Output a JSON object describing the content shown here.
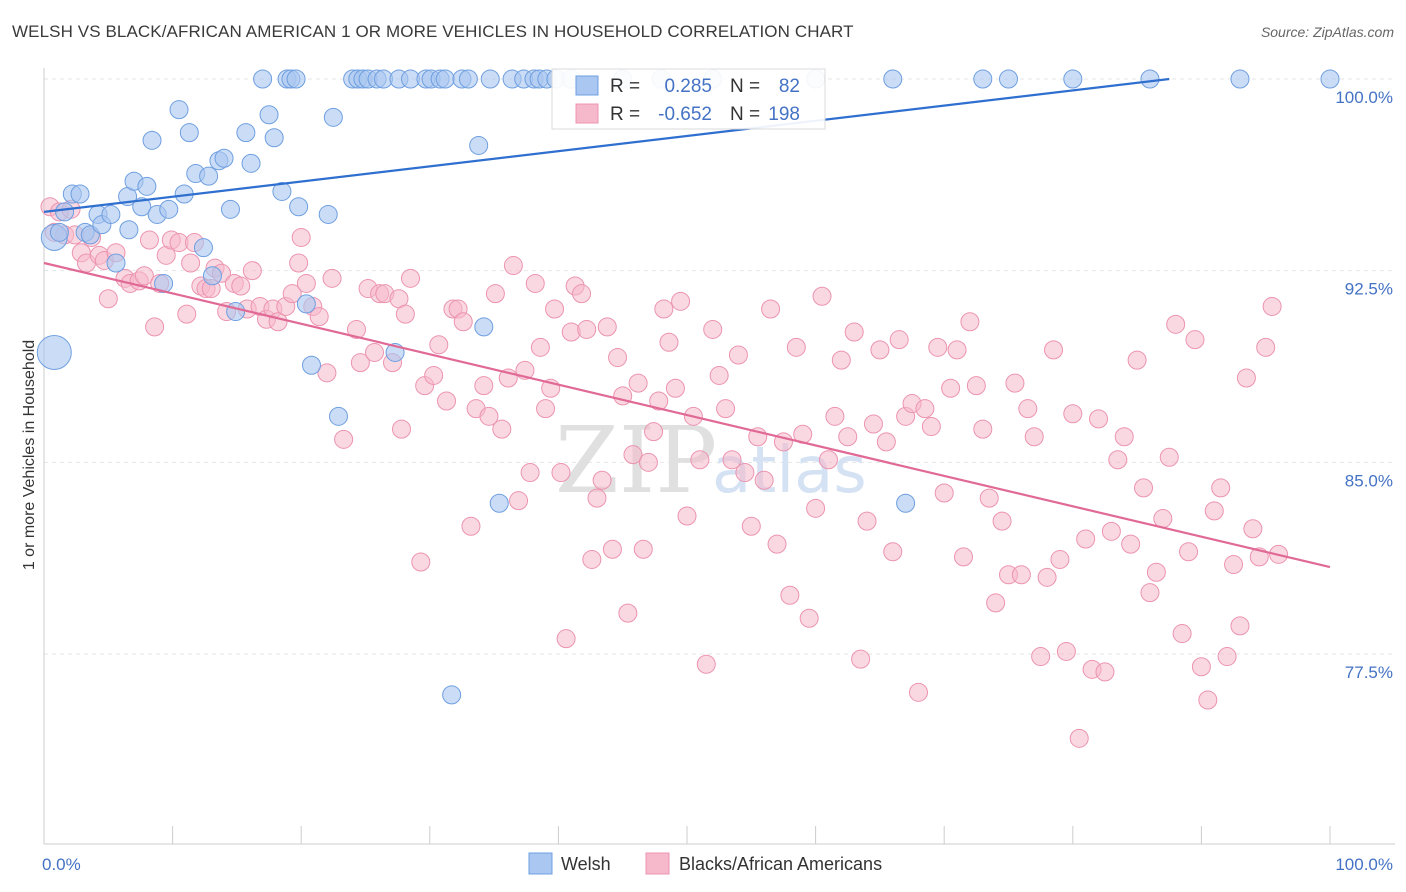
{
  "title": "WELSH VS BLACK/AFRICAN AMERICAN 1 OR MORE VEHICLES IN HOUSEHOLD CORRELATION CHART",
  "source": "Source: ZipAtlas.com",
  "watermark": {
    "zip": "ZIP",
    "atlas": "atlas"
  },
  "colors": {
    "welsh_fill": "#a9c7f0",
    "welsh_stroke": "#6f9fe0",
    "welsh_line": "#2f6fcf",
    "black_fill": "#f6b8cb",
    "black_stroke": "#ec94b0",
    "black_line": "#e06a95",
    "accent": "#4472c4"
  },
  "stats": {
    "r_label": "R =",
    "n_label": "N =",
    "welsh": {
      "r": "0.285",
      "n": "82"
    },
    "black": {
      "r": "-0.652",
      "n": "198"
    }
  },
  "chart_data": {
    "type": "scatter",
    "xlabel": "",
    "ylabel": "1 or more Vehicles in Household",
    "xlim": [
      0,
      100
    ],
    "ylim": [
      71,
      101
    ],
    "x_tick_labels": [
      "0.0%",
      "100.0%"
    ],
    "y_ticks": [
      77.5,
      85.0,
      92.5,
      100.0
    ],
    "y_tick_labels": [
      "77.5%",
      "85.0%",
      "92.5%",
      "100.0%"
    ],
    "grid": true,
    "legend_position": "bottom-center",
    "series": [
      {
        "name": "Welsh",
        "trend": {
          "x": [
            0,
            87.5
          ],
          "y": [
            94.8,
            100.0
          ]
        },
        "points": [
          [
            0.8,
            93.8
          ],
          [
            0.8,
            89.3
          ],
          [
            1.2,
            94.0
          ],
          [
            1.6,
            94.8
          ],
          [
            2.2,
            95.5
          ],
          [
            2.8,
            95.5
          ],
          [
            3.2,
            94.0
          ],
          [
            3.6,
            93.9
          ],
          [
            4.2,
            94.7
          ],
          [
            4.5,
            94.3
          ],
          [
            5.2,
            94.7
          ],
          [
            5.6,
            92.8
          ],
          [
            6.5,
            95.4
          ],
          [
            6.6,
            94.1
          ],
          [
            7.0,
            96.0
          ],
          [
            7.6,
            95.0
          ],
          [
            8.0,
            95.8
          ],
          [
            8.4,
            97.6
          ],
          [
            8.8,
            94.7
          ],
          [
            9.3,
            92.0
          ],
          [
            9.7,
            94.9
          ],
          [
            10.5,
            98.8
          ],
          [
            10.9,
            95.5
          ],
          [
            11.3,
            97.9
          ],
          [
            11.8,
            96.3
          ],
          [
            12.4,
            93.4
          ],
          [
            12.8,
            96.2
          ],
          [
            13.1,
            92.3
          ],
          [
            13.6,
            96.8
          ],
          [
            14.0,
            96.9
          ],
          [
            14.5,
            94.9
          ],
          [
            14.9,
            90.9
          ],
          [
            15.7,
            97.9
          ],
          [
            16.1,
            96.7
          ],
          [
            17.0,
            100.0
          ],
          [
            17.5,
            98.6
          ],
          [
            17.9,
            97.7
          ],
          [
            18.5,
            95.6
          ],
          [
            18.9,
            100.0
          ],
          [
            19.2,
            100.0
          ],
          [
            19.6,
            100.0
          ],
          [
            19.8,
            95.0
          ],
          [
            20.4,
            91.2
          ],
          [
            20.8,
            88.8
          ],
          [
            22.1,
            94.7
          ],
          [
            22.5,
            98.5
          ],
          [
            22.9,
            86.8
          ],
          [
            24.0,
            100.0
          ],
          [
            24.4,
            100.0
          ],
          [
            24.8,
            100.0
          ],
          [
            25.2,
            100.0
          ],
          [
            25.9,
            100.0
          ],
          [
            26.4,
            100.0
          ],
          [
            27.6,
            100.0
          ],
          [
            27.3,
            89.3
          ],
          [
            28.5,
            100.0
          ],
          [
            29.7,
            100.0
          ],
          [
            30.1,
            100.0
          ],
          [
            30.8,
            100.0
          ],
          [
            31.2,
            100.0
          ],
          [
            31.7,
            75.9
          ],
          [
            32.5,
            100.0
          ],
          [
            33.0,
            100.0
          ],
          [
            33.8,
            97.4
          ],
          [
            34.2,
            90.3
          ],
          [
            34.7,
            100.0
          ],
          [
            35.4,
            83.4
          ],
          [
            36.4,
            100.0
          ],
          [
            37.3,
            100.0
          ],
          [
            38.1,
            100.0
          ],
          [
            38.5,
            100.0
          ],
          [
            39.1,
            100.0
          ],
          [
            39.8,
            100.0
          ],
          [
            41.0,
            100.0
          ],
          [
            45.0,
            100.0
          ],
          [
            48.0,
            100.0
          ],
          [
            52.0,
            100.0
          ],
          [
            60.0,
            100.0
          ],
          [
            66.0,
            100.0
          ],
          [
            67.0,
            83.4
          ],
          [
            73.0,
            100.0
          ],
          [
            75.0,
            100.0
          ],
          [
            80.0,
            100.0
          ],
          [
            86.0,
            100.0
          ],
          [
            93.0,
            100.0
          ],
          [
            100.0,
            100.0
          ]
        ]
      },
      {
        "name": "Blacks/African Americans",
        "trend": {
          "x": [
            0,
            100
          ],
          "y": [
            92.8,
            80.9
          ]
        },
        "points": [
          [
            0.4,
            95.0
          ],
          [
            0.8,
            94.0
          ],
          [
            1.2,
            94.8
          ],
          [
            1.6,
            93.9
          ],
          [
            2.1,
            94.9
          ],
          [
            2.4,
            93.9
          ],
          [
            2.9,
            93.2
          ],
          [
            3.3,
            92.8
          ],
          [
            3.7,
            93.8
          ],
          [
            4.3,
            93.1
          ],
          [
            4.7,
            92.9
          ],
          [
            5.0,
            91.4
          ],
          [
            5.6,
            93.2
          ],
          [
            6.3,
            92.2
          ],
          [
            6.7,
            92.0
          ],
          [
            7.4,
            92.1
          ],
          [
            7.8,
            92.3
          ],
          [
            8.2,
            93.7
          ],
          [
            8.6,
            90.3
          ],
          [
            9.0,
            92.0
          ],
          [
            9.5,
            93.1
          ],
          [
            9.9,
            93.7
          ],
          [
            10.5,
            93.6
          ],
          [
            11.1,
            90.8
          ],
          [
            11.4,
            92.8
          ],
          [
            11.7,
            93.6
          ],
          [
            12.2,
            91.9
          ],
          [
            12.6,
            91.8
          ],
          [
            13.0,
            91.8
          ],
          [
            13.3,
            92.6
          ],
          [
            13.8,
            92.4
          ],
          [
            14.2,
            90.9
          ],
          [
            14.8,
            92.0
          ],
          [
            15.3,
            91.9
          ],
          [
            15.8,
            91.0
          ],
          [
            16.2,
            92.5
          ],
          [
            16.8,
            91.1
          ],
          [
            17.3,
            90.6
          ],
          [
            17.8,
            91.0
          ],
          [
            18.2,
            90.5
          ],
          [
            18.8,
            91.1
          ],
          [
            19.3,
            91.6
          ],
          [
            19.8,
            92.8
          ],
          [
            20.0,
            93.8
          ],
          [
            20.4,
            92.0
          ],
          [
            20.9,
            91.1
          ],
          [
            21.4,
            90.7
          ],
          [
            22.0,
            88.5
          ],
          [
            22.4,
            92.2
          ],
          [
            23.3,
            85.9
          ],
          [
            24.3,
            90.2
          ],
          [
            24.6,
            88.9
          ],
          [
            25.2,
            91.8
          ],
          [
            25.7,
            89.3
          ],
          [
            26.1,
            91.6
          ],
          [
            26.5,
            91.6
          ],
          [
            27.1,
            88.9
          ],
          [
            27.6,
            91.4
          ],
          [
            27.8,
            86.3
          ],
          [
            28.1,
            90.8
          ],
          [
            28.5,
            92.2
          ],
          [
            29.3,
            81.1
          ],
          [
            29.6,
            88.0
          ],
          [
            30.3,
            88.4
          ],
          [
            30.7,
            89.6
          ],
          [
            31.3,
            87.4
          ],
          [
            31.8,
            91.0
          ],
          [
            32.2,
            91.0
          ],
          [
            32.6,
            90.5
          ],
          [
            33.2,
            82.5
          ],
          [
            33.6,
            87.1
          ],
          [
            34.2,
            88.0
          ],
          [
            34.6,
            86.8
          ],
          [
            35.1,
            91.6
          ],
          [
            35.6,
            86.3
          ],
          [
            36.1,
            88.3
          ],
          [
            36.5,
            92.7
          ],
          [
            36.9,
            83.5
          ],
          [
            37.4,
            88.6
          ],
          [
            37.8,
            84.6
          ],
          [
            38.2,
            92.0
          ],
          [
            38.6,
            89.5
          ],
          [
            39.0,
            87.1
          ],
          [
            39.4,
            87.9
          ],
          [
            39.7,
            91.0
          ],
          [
            40.2,
            84.6
          ],
          [
            40.6,
            78.1
          ],
          [
            41.0,
            90.1
          ],
          [
            41.3,
            91.9
          ],
          [
            41.8,
            91.6
          ],
          [
            42.2,
            90.2
          ],
          [
            42.6,
            81.2
          ],
          [
            43.0,
            83.6
          ],
          [
            43.4,
            84.3
          ],
          [
            43.8,
            90.3
          ],
          [
            44.2,
            81.6
          ],
          [
            44.6,
            89.1
          ],
          [
            45.0,
            87.6
          ],
          [
            45.4,
            79.1
          ],
          [
            45.8,
            85.3
          ],
          [
            46.2,
            88.1
          ],
          [
            46.6,
            81.6
          ],
          [
            47.0,
            85.0
          ],
          [
            47.4,
            86.2
          ],
          [
            47.8,
            87.4
          ],
          [
            48.2,
            91.0
          ],
          [
            48.6,
            89.7
          ],
          [
            49.1,
            87.9
          ],
          [
            49.5,
            91.3
          ],
          [
            50.0,
            82.9
          ],
          [
            50.5,
            86.8
          ],
          [
            51.0,
            85.1
          ],
          [
            51.5,
            77.1
          ],
          [
            52.0,
            90.2
          ],
          [
            52.5,
            88.4
          ],
          [
            53.0,
            87.1
          ],
          [
            53.5,
            85.1
          ],
          [
            54.0,
            89.2
          ],
          [
            54.5,
            84.6
          ],
          [
            55.0,
            82.5
          ],
          [
            55.5,
            86.0
          ],
          [
            56.0,
            84.3
          ],
          [
            56.5,
            91.0
          ],
          [
            57.0,
            81.8
          ],
          [
            57.5,
            85.8
          ],
          [
            58.0,
            79.8
          ],
          [
            58.5,
            89.5
          ],
          [
            59.0,
            86.1
          ],
          [
            59.5,
            78.9
          ],
          [
            60.0,
            83.2
          ],
          [
            60.5,
            91.5
          ],
          [
            61.0,
            85.1
          ],
          [
            61.5,
            86.8
          ],
          [
            62.0,
            89.0
          ],
          [
            62.5,
            86.0
          ],
          [
            63.0,
            90.1
          ],
          [
            63.5,
            77.3
          ],
          [
            64.0,
            82.7
          ],
          [
            64.5,
            86.5
          ],
          [
            65.0,
            89.4
          ],
          [
            65.5,
            85.8
          ],
          [
            66.0,
            81.5
          ],
          [
            66.5,
            89.8
          ],
          [
            67.0,
            86.8
          ],
          [
            67.5,
            87.3
          ],
          [
            68.0,
            76.0
          ],
          [
            68.5,
            87.1
          ],
          [
            69.0,
            86.4
          ],
          [
            69.5,
            89.5
          ],
          [
            70.0,
            83.8
          ],
          [
            70.5,
            87.9
          ],
          [
            71.0,
            89.4
          ],
          [
            71.5,
            81.3
          ],
          [
            72.0,
            90.5
          ],
          [
            72.5,
            88.0
          ],
          [
            73.0,
            86.3
          ],
          [
            73.5,
            83.6
          ],
          [
            74.0,
            79.5
          ],
          [
            74.5,
            82.7
          ],
          [
            75.0,
            80.6
          ],
          [
            75.5,
            88.1
          ],
          [
            76.0,
            80.6
          ],
          [
            76.5,
            87.1
          ],
          [
            77.0,
            86.0
          ],
          [
            77.5,
            77.4
          ],
          [
            78.0,
            80.5
          ],
          [
            78.5,
            89.4
          ],
          [
            79.0,
            81.2
          ],
          [
            79.5,
            77.6
          ],
          [
            80.0,
            86.9
          ],
          [
            80.5,
            74.2
          ],
          [
            81.0,
            82.0
          ],
          [
            81.5,
            76.9
          ],
          [
            82.0,
            86.7
          ],
          [
            82.5,
            76.8
          ],
          [
            83.0,
            82.3
          ],
          [
            83.5,
            85.1
          ],
          [
            84.0,
            86.0
          ],
          [
            84.5,
            81.8
          ],
          [
            85.0,
            89.0
          ],
          [
            85.5,
            84.0
          ],
          [
            86.0,
            79.9
          ],
          [
            86.5,
            80.7
          ],
          [
            87.0,
            82.8
          ],
          [
            87.5,
            85.2
          ],
          [
            88.0,
            90.4
          ],
          [
            88.5,
            78.3
          ],
          [
            89.0,
            81.5
          ],
          [
            89.5,
            89.8
          ],
          [
            90.0,
            77.0
          ],
          [
            90.5,
            75.7
          ],
          [
            91.0,
            83.1
          ],
          [
            91.5,
            84.0
          ],
          [
            92.0,
            77.4
          ],
          [
            92.5,
            81.0
          ],
          [
            93.0,
            78.6
          ],
          [
            93.5,
            88.3
          ],
          [
            94.0,
            82.4
          ],
          [
            94.5,
            81.3
          ],
          [
            95.0,
            89.5
          ],
          [
            95.5,
            91.1
          ],
          [
            96.0,
            81.4
          ]
        ]
      }
    ]
  },
  "legend": {
    "items": [
      "Welsh",
      "Blacks/African Americans"
    ]
  }
}
